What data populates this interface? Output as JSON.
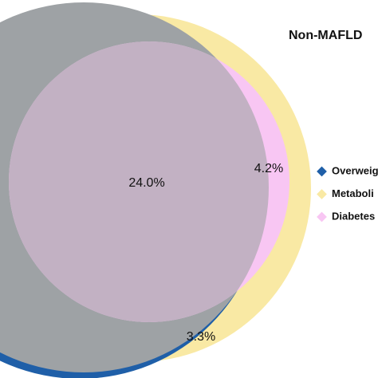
{
  "title": "Non-MAFLD",
  "regions": [
    {
      "label": "24.0%"
    },
    {
      "label": "4.2%"
    },
    {
      "label": "3.3%"
    }
  ],
  "legend": [
    {
      "label": "Overweig",
      "color": "#1f5fa8"
    },
    {
      "label": "Metaboli",
      "color": "#f9e9a4"
    },
    {
      "label": "Diabetes",
      "color": "#f8c6f3"
    }
  ]
}
